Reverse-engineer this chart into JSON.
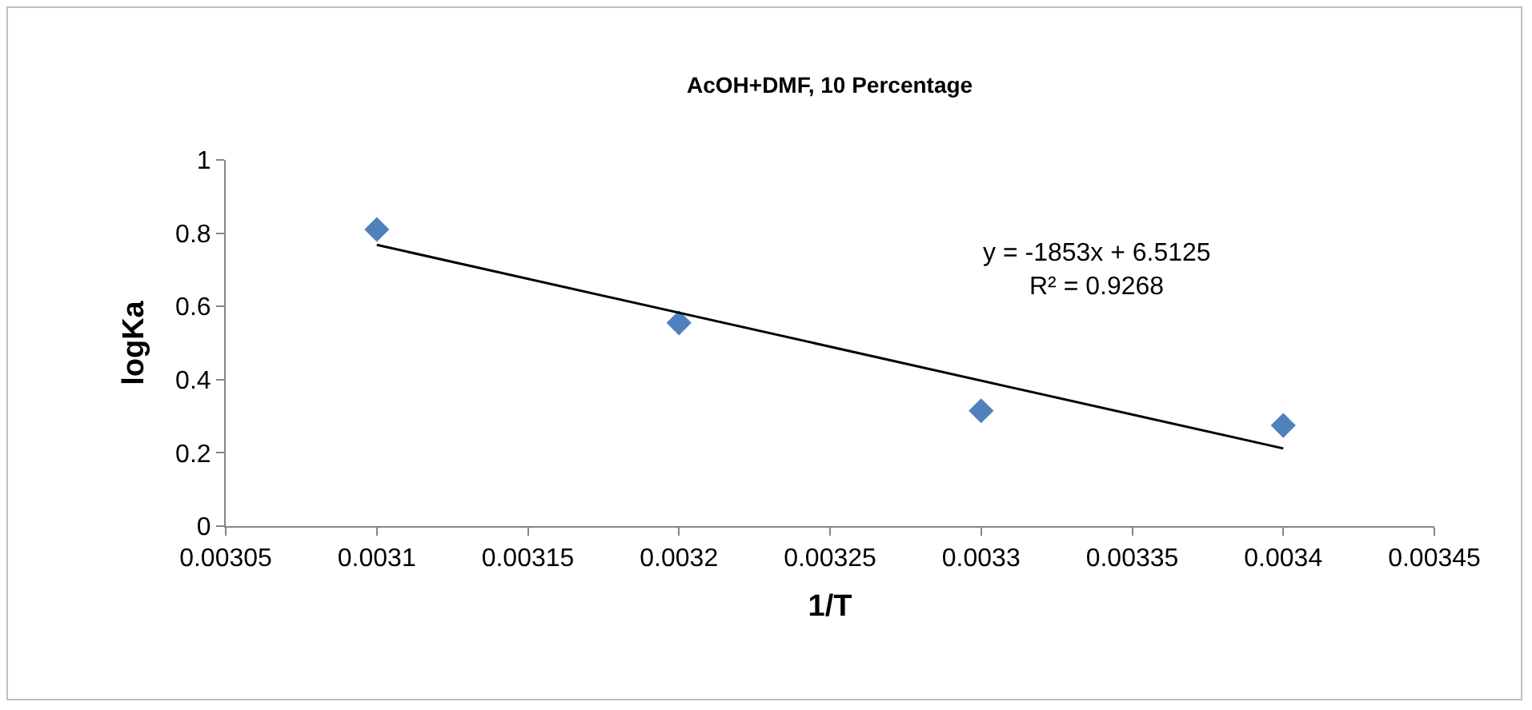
{
  "chart_data": {
    "type": "scatter",
    "title": "AcOH+DMF, 10 Percentage",
    "xlabel": "1/T",
    "ylabel": "logKa",
    "x": [
      0.0031,
      0.0032,
      0.0033,
      0.0034
    ],
    "series": [
      {
        "color": "#4f81bd",
        "marker": "diamond",
        "values": [
          0.81,
          0.555,
          0.315,
          0.275
        ]
      },
      {
        "type": "line",
        "color": "#000000",
        "marker": "none",
        "line_style": "solid",
        "x": [
          0.0031,
          0.0034
        ],
        "values": [
          0.768,
          0.212
        ]
      }
    ],
    "xlim": [
      0.00305,
      0.00345
    ],
    "xticks": [
      0.00305,
      0.0031,
      0.00315,
      0.0032,
      0.00325,
      0.0033,
      0.00335,
      0.0034,
      0.00345
    ],
    "ylim": [
      0,
      1
    ],
    "yticks": [
      0,
      0.2,
      0.4,
      0.6,
      0.8,
      1
    ],
    "annotations": [
      "y = -1853x + 6.5125",
      "R² = 0.9268"
    ],
    "grid": false
  }
}
